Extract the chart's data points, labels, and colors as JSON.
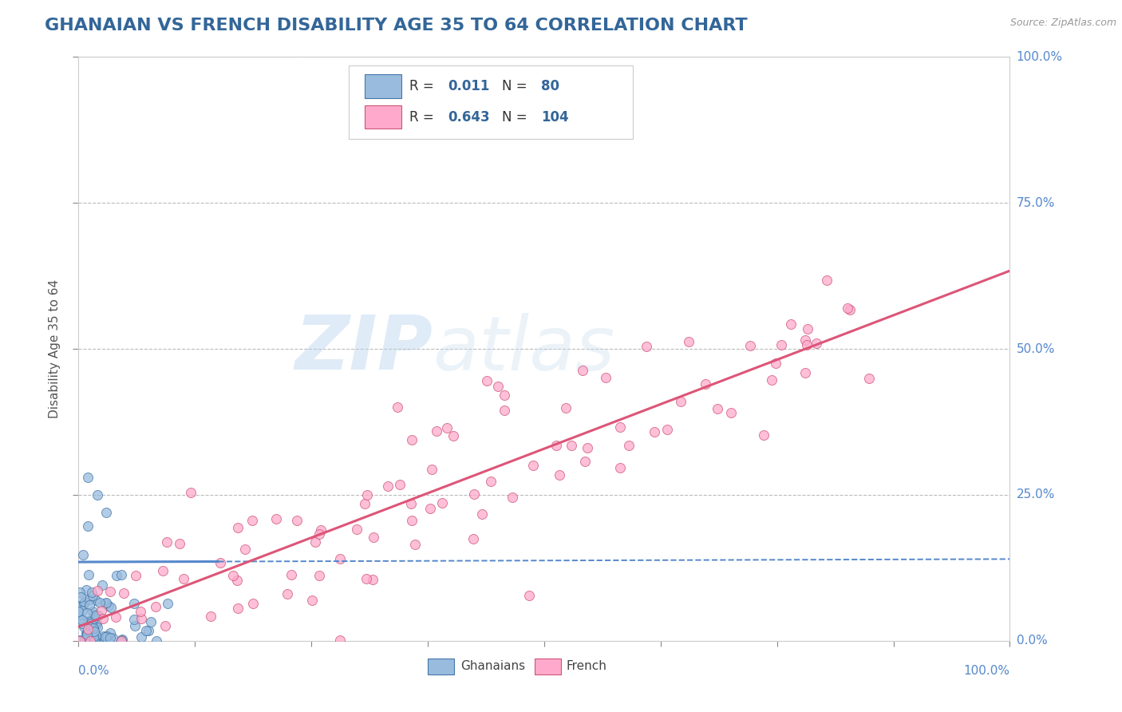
{
  "title": "GHANAIAN VS FRENCH DISABILITY AGE 35 TO 64 CORRELATION CHART",
  "source_text": "Source: ZipAtlas.com",
  "ylabel": "Disability Age 35 to 64",
  "right_yticks": [
    0.0,
    0.25,
    0.5,
    0.75,
    1.0
  ],
  "right_yticklabels": [
    "0.0%",
    "25.0%",
    "50.0%",
    "75.0%",
    "100.0%"
  ],
  "r_blue": "0.011",
  "n_blue": "80",
  "r_pink": "0.643",
  "n_pink": "104",
  "blue_color": "#5588cc",
  "pink_color": "#dd5577",
  "accent_color": "#5588cc",
  "watermark_zip": "ZIP",
  "watermark_atlas": "atlas",
  "title_color": "#336699",
  "title_fontsize": 16,
  "background_color": "#ffffff",
  "grid_color": "#bbbbbb",
  "blue_scatter_color": "#99bbdd",
  "blue_scatter_edge": "#4477aa",
  "pink_scatter_color": "#ffaacc",
  "pink_scatter_edge": "#cc5577",
  "legend_text_color": "#336699",
  "source_color": "#999999",
  "ylabel_color": "#555555",
  "tick_color": "#888888"
}
